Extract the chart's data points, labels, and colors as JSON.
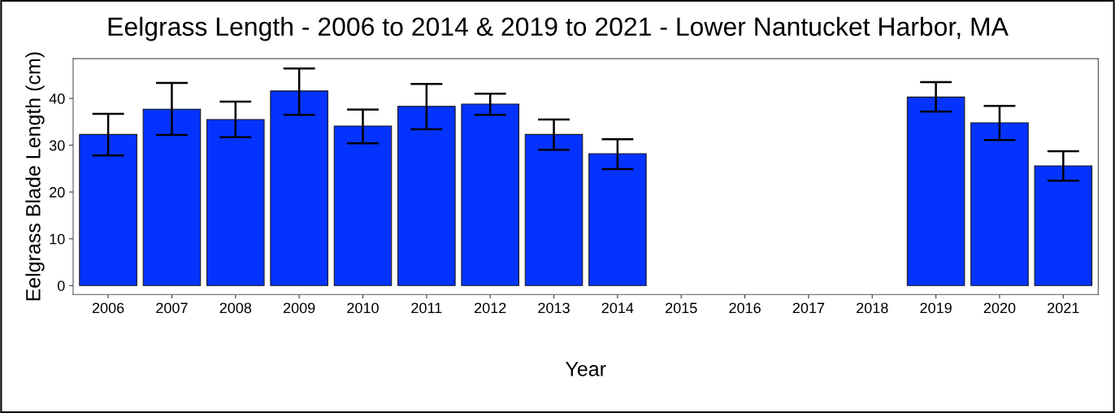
{
  "chart_data": {
    "type": "bar",
    "title": "Eelgrass Length - 2006 to 2014 & 2019 to 2021 - Lower Nantucket Harbor, MA",
    "xlabel": "Year",
    "ylabel": "Eelgrass Blade Length (cm)",
    "categories": [
      "2006",
      "2007",
      "2008",
      "2009",
      "2010",
      "2011",
      "2012",
      "2013",
      "2014",
      "2015",
      "2016",
      "2017",
      "2018",
      "2019",
      "2020",
      "2021"
    ],
    "values": [
      32.3,
      37.7,
      35.5,
      41.6,
      34.1,
      38.3,
      38.8,
      32.3,
      28.2,
      null,
      null,
      null,
      null,
      40.3,
      34.8,
      25.6
    ],
    "errors": [
      [
        27.8,
        36.7
      ],
      [
        32.2,
        43.3
      ],
      [
        31.7,
        39.3
      ],
      [
        36.5,
        46.4
      ],
      [
        30.4,
        37.6
      ],
      [
        33.4,
        43.1
      ],
      [
        36.5,
        41.0
      ],
      [
        29.0,
        35.5
      ],
      [
        24.9,
        31.3
      ],
      null,
      null,
      null,
      null,
      [
        37.2,
        43.5
      ],
      [
        31.1,
        38.4
      ],
      [
        22.4,
        28.7
      ]
    ],
    "color": "#0433ff",
    "ylim": [
      -1.9,
      48.5
    ],
    "yticks": [
      0,
      10,
      20,
      30,
      40
    ],
    "grid": false
  }
}
